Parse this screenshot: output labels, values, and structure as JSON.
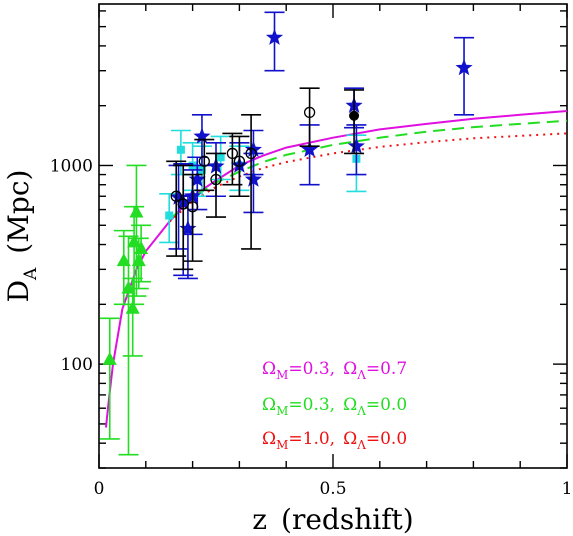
{
  "chart_data": {
    "type": "scatter",
    "title": "",
    "xlabel": {
      "main": "z",
      "paren": "(redshift)"
    },
    "ylabel": {
      "main": "D",
      "sub": "A",
      "paren": "(Mpc)"
    },
    "xlim": [
      0,
      1
    ],
    "ylim": [
      30,
      6500
    ],
    "yscale": "log",
    "x_ticks": [
      {
        "value": 0,
        "label": "0"
      },
      {
        "value": 0.5,
        "label": "0.5"
      },
      {
        "value": 1,
        "label": "1"
      }
    ],
    "y_ticks": [
      {
        "value": 100,
        "label": "100"
      },
      {
        "value": 1000,
        "label": "1000"
      }
    ],
    "grid": false,
    "models": [
      {
        "Om": 0.3,
        "OL": 0.7,
        "color": "#e010e0",
        "dash": "solid",
        "curve": [
          [
            0.015,
            48
          ],
          [
            0.02,
            63
          ],
          [
            0.03,
            100
          ],
          [
            0.05,
            190
          ],
          [
            0.08,
            300
          ],
          [
            0.1,
            370
          ],
          [
            0.15,
            520
          ],
          [
            0.2,
            700
          ],
          [
            0.25,
            840
          ],
          [
            0.3,
            1000
          ],
          [
            0.35,
            1120
          ],
          [
            0.4,
            1230
          ],
          [
            0.5,
            1380
          ],
          [
            0.6,
            1520
          ],
          [
            0.7,
            1620
          ],
          [
            0.8,
            1720
          ],
          [
            0.9,
            1800
          ],
          [
            1.0,
            1880
          ]
        ]
      },
      {
        "Om": 0.3,
        "OL": 0.0,
        "color": "#22dd22",
        "dash": "dashed",
        "curve": [
          [
            0.15,
            530
          ],
          [
            0.2,
            690
          ],
          [
            0.25,
            820
          ],
          [
            0.3,
            930
          ],
          [
            0.35,
            1040
          ],
          [
            0.4,
            1130
          ],
          [
            0.5,
            1270
          ],
          [
            0.6,
            1380
          ],
          [
            0.7,
            1480
          ],
          [
            0.8,
            1560
          ],
          [
            0.9,
            1620
          ],
          [
            1.0,
            1680
          ]
        ]
      },
      {
        "Om": 1.0,
        "OL": 0.0,
        "color": "#ee1111",
        "dash": "dotted",
        "curve": [
          [
            0.15,
            520
          ],
          [
            0.2,
            660
          ],
          [
            0.25,
            780
          ],
          [
            0.3,
            880
          ],
          [
            0.35,
            970
          ],
          [
            0.4,
            1040
          ],
          [
            0.5,
            1150
          ],
          [
            0.6,
            1240
          ],
          [
            0.7,
            1310
          ],
          [
            0.8,
            1370
          ],
          [
            0.9,
            1410
          ],
          [
            1.0,
            1450
          ]
        ]
      }
    ],
    "legend": [
      {
        "om_label": "Ω",
        "om_sub": "M",
        "om_val": "=0.3,",
        "ol_label": "Ω",
        "ol_sub": "Λ",
        "ol_val": "=0.7",
        "color": "#e010e0"
      },
      {
        "om_label": "Ω",
        "om_sub": "M",
        "om_val": "=0.3,",
        "ol_label": "Ω",
        "ol_sub": "Λ",
        "ol_val": "=0.0",
        "color": "#22dd22"
      },
      {
        "om_label": "Ω",
        "om_sub": "M",
        "om_val": "=1.0,",
        "ol_label": "Ω",
        "ol_sub": "Λ",
        "ol_val": "=0.0",
        "color": "#ee1111"
      }
    ],
    "series": [
      {
        "marker": "triangle",
        "color": "#22dd22",
        "points": [
          {
            "x": 0.023,
            "y": 105,
            "lo": 42,
            "hi": 170
          },
          {
            "x": 0.053,
            "y": 330,
            "lo": 200,
            "hi": 470
          },
          {
            "x": 0.063,
            "y": 240,
            "lo": 35,
            "hi": 440
          },
          {
            "x": 0.072,
            "y": 190,
            "lo": 110,
            "hi": 270
          },
          {
            "x": 0.075,
            "y": 410,
            "lo": 200,
            "hi": 620
          },
          {
            "x": 0.08,
            "y": 580,
            "lo": 220,
            "hi": 1000
          },
          {
            "x": 0.085,
            "y": 330,
            "lo": 240,
            "hi": 430
          },
          {
            "x": 0.09,
            "y": 380,
            "lo": 260,
            "hi": 500
          }
        ]
      },
      {
        "marker": "square",
        "color": "#22dddd",
        "points": [
          {
            "x": 0.15,
            "y": 560,
            "lo": 410,
            "hi": 720
          },
          {
            "x": 0.175,
            "y": 1200,
            "lo": 900,
            "hi": 1500
          },
          {
            "x": 0.2,
            "y": 1000,
            "lo": 750,
            "hi": 1300
          },
          {
            "x": 0.22,
            "y": 950,
            "lo": 700,
            "hi": 1250
          },
          {
            "x": 0.26,
            "y": 1100,
            "lo": 850,
            "hi": 1400
          },
          {
            "x": 0.3,
            "y": 1000,
            "lo": 750,
            "hi": 1250
          },
          {
            "x": 0.55,
            "y": 1080,
            "lo": 740,
            "hi": 1420
          }
        ]
      },
      {
        "marker": "star",
        "color": "#1111cc",
        "points": [
          {
            "x": 0.17,
            "y": 690,
            "lo": 380,
            "hi": 1000
          },
          {
            "x": 0.18,
            "y": 650,
            "lo": 280,
            "hi": 1020
          },
          {
            "x": 0.19,
            "y": 480,
            "lo": 270,
            "hi": 700
          },
          {
            "x": 0.2,
            "y": 700,
            "lo": 450,
            "hi": 950
          },
          {
            "x": 0.21,
            "y": 850,
            "lo": 600,
            "hi": 1100
          },
          {
            "x": 0.22,
            "y": 1400,
            "lo": 1000,
            "hi": 1800
          },
          {
            "x": 0.25,
            "y": 990,
            "lo": 700,
            "hi": 1300
          },
          {
            "x": 0.3,
            "y": 1000,
            "lo": 700,
            "hi": 1300
          },
          {
            "x": 0.33,
            "y": 850,
            "lo": 580,
            "hi": 1150
          },
          {
            "x": 0.33,
            "y": 1200,
            "lo": 900,
            "hi": 1500
          },
          {
            "x": 0.375,
            "y": 4400,
            "lo": 3000,
            "hi": 5900
          },
          {
            "x": 0.45,
            "y": 1200,
            "lo": 800,
            "hi": 1600
          },
          {
            "x": 0.545,
            "y": 2000,
            "lo": 1550,
            "hi": 2450
          },
          {
            "x": 0.55,
            "y": 1250,
            "lo": 900,
            "hi": 1600
          },
          {
            "x": 0.78,
            "y": 3100,
            "lo": 1800,
            "hi": 4400
          }
        ]
      },
      {
        "marker": "open-circle",
        "color": "#000000",
        "points": [
          {
            "x": 0.165,
            "y": 700,
            "lo": 350,
            "hi": 1050
          },
          {
            "x": 0.18,
            "y": 640,
            "lo": 300,
            "hi": 1000
          },
          {
            "x": 0.2,
            "y": 620,
            "lo": 330,
            "hi": 900
          },
          {
            "x": 0.225,
            "y": 1050,
            "lo": 750,
            "hi": 1350
          },
          {
            "x": 0.25,
            "y": 850,
            "lo": 550,
            "hi": 1150
          },
          {
            "x": 0.285,
            "y": 1150,
            "lo": 800,
            "hi": 1450
          },
          {
            "x": 0.3,
            "y": 1050,
            "lo": 700,
            "hi": 1400
          },
          {
            "x": 0.325,
            "y": 1150,
            "lo": 380,
            "hi": 1800
          },
          {
            "x": 0.45,
            "y": 1850,
            "lo": 1250,
            "hi": 2450
          }
        ]
      },
      {
        "marker": "filled-circle",
        "color": "#000000",
        "points": [
          {
            "x": 0.545,
            "y": 1780,
            "lo": 1150,
            "hi": 2400
          }
        ]
      }
    ]
  }
}
